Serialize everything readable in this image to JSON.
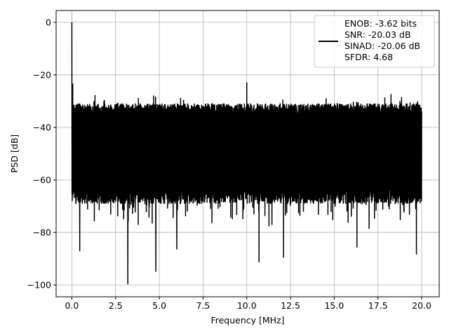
{
  "chart_data": {
    "type": "line",
    "xlabel": "Frequency [MHz]",
    "ylabel": "PSD [dB]",
    "xlim": [
      -0.9,
      21.0
    ],
    "ylim": [
      -104.5,
      4.5
    ],
    "xticks": [
      0.0,
      2.5,
      5.0,
      7.5,
      10.0,
      12.5,
      15.0,
      17.5,
      20.0
    ],
    "xtick_labels": [
      "0.0",
      "2.5",
      "5.0",
      "7.5",
      "10.0",
      "12.5",
      "15.0",
      "17.5",
      "20.0"
    ],
    "yticks": [
      0,
      -20,
      -40,
      -60,
      -80,
      -100
    ],
    "ytick_labels": [
      "0",
      "−20",
      "−40",
      "−60",
      "−80",
      "−100"
    ],
    "grid": true,
    "legend_position": "top-right",
    "series": [
      {
        "name": "ENOB: -3.62 bits\nSNR: -20.03 dB\nSINAD: -20.06 dB\nSFDR: 4.68",
        "color": "#000000",
        "x_range": [
          0.0,
          20.0
        ],
        "noise_floor_upper_db": -31,
        "noise_floor_lower_db": -69,
        "spikes": [
          {
            "x": 0.0,
            "y": 0.0
          },
          {
            "x": 0.05,
            "y": -23.5
          },
          {
            "x": 10.0,
            "y": -23.0
          },
          {
            "x": 3.2,
            "y": -99.6
          },
          {
            "x": 4.8,
            "y": -94.8
          },
          {
            "x": 10.7,
            "y": -91.2
          },
          {
            "x": 19.7,
            "y": -88.2
          },
          {
            "x": 0.45,
            "y": -87.0
          },
          {
            "x": 6.0,
            "y": -86.3
          },
          {
            "x": 12.1,
            "y": -89.5
          },
          {
            "x": 16.3,
            "y": -85.5
          }
        ]
      }
    ],
    "legend": {
      "lines": [
        "ENOB: -3.62 bits",
        "SNR: -20.03 dB",
        "SINAD: -20.06 dB",
        "SFDR: 4.68"
      ]
    }
  }
}
